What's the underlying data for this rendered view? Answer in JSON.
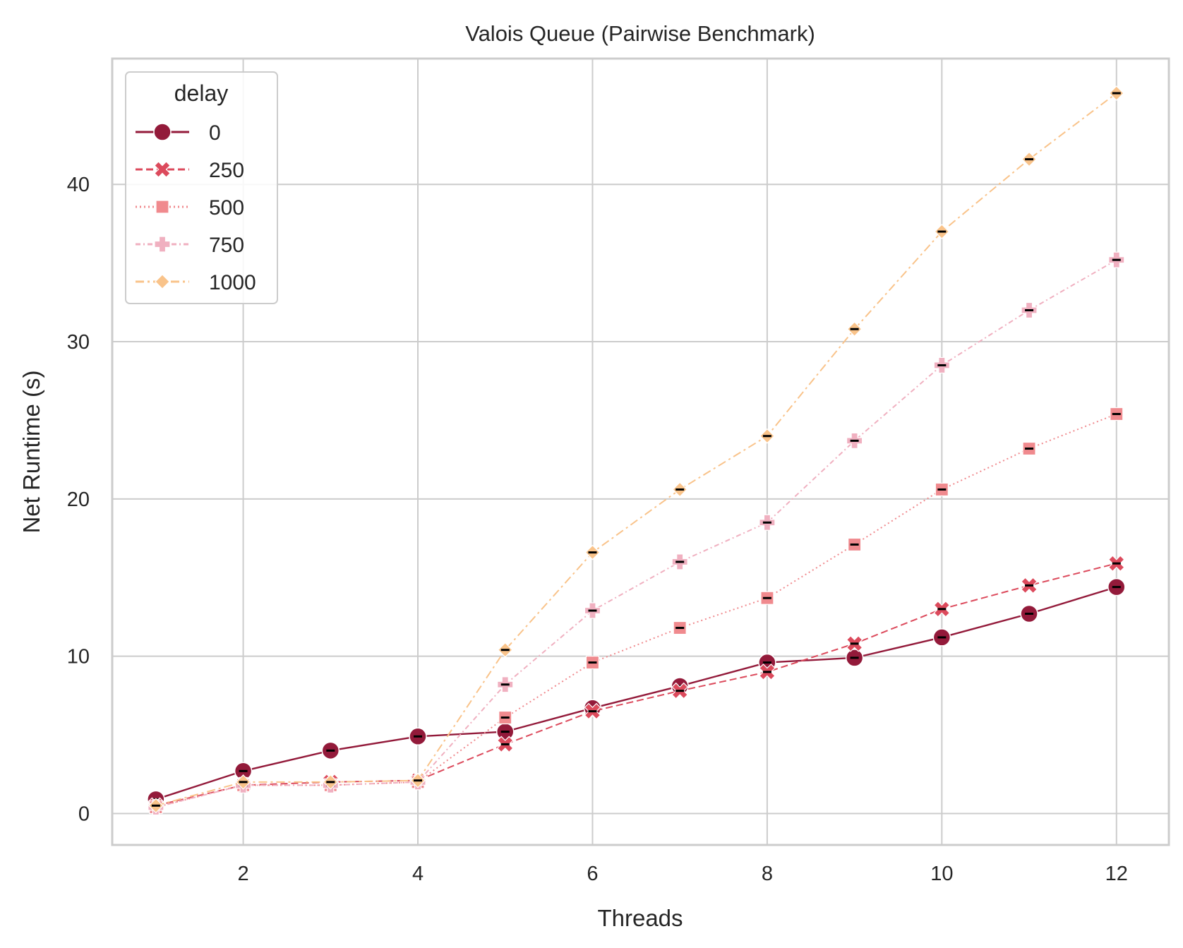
{
  "chart_data": {
    "type": "line",
    "title": "Valois Queue (Pairwise Benchmark)",
    "xlabel": "Threads",
    "ylabel": "Net Runtime (s)",
    "xlim": [
      0.5,
      12.6
    ],
    "ylim": [
      -2.0,
      48.0
    ],
    "xticks": [
      2,
      4,
      6,
      8,
      10,
      12
    ],
    "yticks": [
      0,
      10,
      20,
      30,
      40
    ],
    "grid": true,
    "legend": {
      "title": "delay",
      "position": "top-left"
    },
    "x": [
      1,
      2,
      3,
      4,
      5,
      6,
      7,
      8,
      9,
      10,
      11,
      12
    ],
    "series": [
      {
        "name": "0",
        "color": "#931a3a",
        "marker": "circle",
        "dash": "solid",
        "values": [
          0.9,
          2.7,
          4.0,
          4.9,
          5.2,
          6.7,
          8.1,
          9.6,
          9.9,
          11.2,
          12.7,
          14.4
        ]
      },
      {
        "name": "250",
        "color": "#dc4a5c",
        "marker": "x",
        "dash": "dashed",
        "values": [
          0.5,
          1.8,
          2.0,
          2.1,
          4.4,
          6.5,
          7.8,
          9.0,
          10.8,
          13.0,
          14.5,
          15.9
        ]
      },
      {
        "name": "500",
        "color": "#f08a8e",
        "marker": "square",
        "dash": "dotted",
        "values": [
          0.4,
          1.8,
          1.8,
          2.0,
          6.1,
          9.6,
          11.8,
          13.7,
          17.1,
          20.6,
          23.2,
          25.4
        ]
      },
      {
        "name": "750",
        "color": "#f0b0c0",
        "marker": "plus",
        "dash": "dashdot-short",
        "values": [
          0.4,
          1.8,
          1.8,
          2.0,
          8.2,
          12.9,
          16.0,
          18.5,
          23.7,
          28.5,
          32.0,
          35.2
        ]
      },
      {
        "name": "1000",
        "color": "#f9c38a",
        "marker": "diamond",
        "dash": "dashdot",
        "values": [
          0.5,
          2.0,
          2.0,
          2.1,
          10.4,
          16.6,
          20.6,
          24.0,
          30.8,
          37.0,
          41.6,
          45.8
        ]
      }
    ]
  }
}
